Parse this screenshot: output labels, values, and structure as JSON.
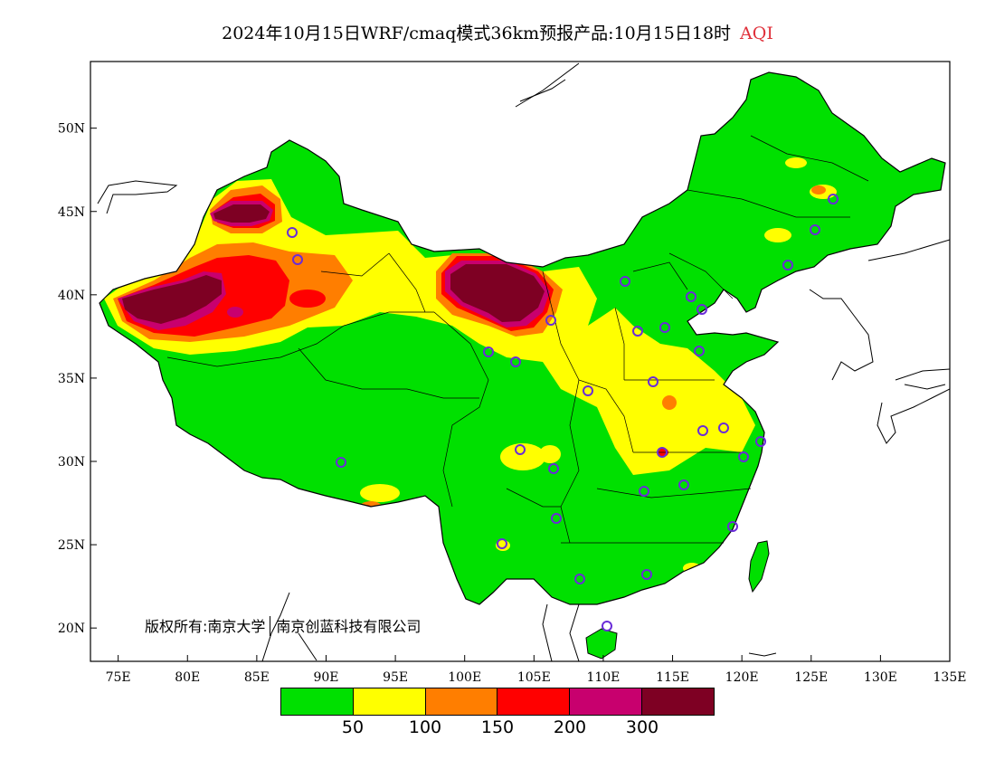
{
  "title": {
    "main": "2024年10月15日WRF/cmaq模式36km预报产品:10月15日18时",
    "variable": "AQI",
    "variable_color": "#e0303a"
  },
  "map": {
    "region": "China",
    "lon_range": [
      73,
      135
    ],
    "lat_range": [
      18,
      54
    ],
    "lon_ticks": [
      "75E",
      "80E",
      "85E",
      "90E",
      "95E",
      "100E",
      "105E",
      "110E",
      "115E",
      "120E",
      "125E",
      "130E",
      "135E"
    ],
    "lat_ticks": [
      "20N",
      "25N",
      "30N",
      "35N",
      "40N",
      "45N",
      "50N"
    ],
    "background_color": "#00e000"
  },
  "copyright": {
    "text_left": "版权所有:南京大学",
    "text_right": "南京创蓝科技有限公司"
  },
  "legend": {
    "colors": [
      "#00e000",
      "#ffff00",
      "#ff7e00",
      "#ff0000",
      "#c8006e",
      "#7e0023"
    ],
    "labels": [
      "50",
      "100",
      "150",
      "200",
      "300"
    ]
  }
}
